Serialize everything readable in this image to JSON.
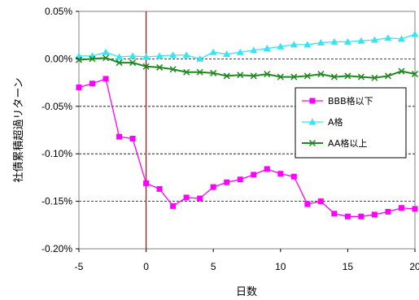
{
  "chart_data": {
    "type": "line",
    "xlabel": "日数",
    "ylabel": "社債累積超過リターン",
    "xlim": [
      -5,
      20
    ],
    "ylim": [
      -0.2,
      0.05
    ],
    "x_ticks": [
      -5,
      0,
      5,
      10,
      15,
      20
    ],
    "y_ticks": [
      0.05,
      0.0,
      -0.05,
      -0.1,
      -0.15,
      -0.2
    ],
    "y_tick_labels": [
      "0.05%",
      "0.00%",
      "-0.05%",
      "-0.10%",
      "-0.15%",
      "-0.20%"
    ],
    "x_tick_labels": [
      "-5",
      "0",
      "5",
      "10",
      "15",
      "20"
    ],
    "grid": "horizontal dashed",
    "vertical_reference_line_x": 0,
    "legend_position": "center-right",
    "x": [
      -5,
      -4,
      -3,
      -2,
      -1,
      0,
      1,
      2,
      3,
      4,
      5,
      6,
      7,
      8,
      9,
      10,
      11,
      12,
      13,
      14,
      15,
      16,
      17,
      18,
      19,
      20
    ],
    "series": [
      {
        "name": "BBB格以下",
        "color": "#ff00ff",
        "marker": "square",
        "values": [
          -0.03,
          -0.026,
          -0.021,
          -0.082,
          -0.084,
          -0.131,
          -0.137,
          -0.155,
          -0.146,
          -0.147,
          -0.135,
          -0.13,
          -0.127,
          -0.122,
          -0.116,
          -0.121,
          -0.124,
          -0.153,
          -0.15,
          -0.163,
          -0.166,
          -0.166,
          -0.164,
          -0.161,
          -0.157,
          -0.158
        ]
      },
      {
        "name": "A格",
        "color": "#33e6f2",
        "marker": "triangle",
        "values": [
          0.003,
          0.003,
          0.007,
          0.002,
          0.003,
          0.002,
          0.003,
          0.004,
          0.004,
          0.0,
          0.007,
          0.005,
          0.007,
          0.009,
          0.011,
          0.013,
          0.015,
          0.015,
          0.017,
          0.018,
          0.018,
          0.019,
          0.02,
          0.022,
          0.021,
          0.026
        ]
      },
      {
        "name": "AA格以上",
        "color": "#1e8a1e",
        "marker": "x",
        "values": [
          -0.001,
          0.0,
          0.001,
          -0.004,
          -0.004,
          -0.008,
          -0.009,
          -0.011,
          -0.014,
          -0.014,
          -0.015,
          -0.018,
          -0.017,
          -0.018,
          -0.016,
          -0.019,
          -0.019,
          -0.018,
          -0.016,
          -0.019,
          -0.018,
          -0.019,
          -0.02,
          -0.018,
          -0.013,
          -0.016
        ]
      }
    ]
  }
}
